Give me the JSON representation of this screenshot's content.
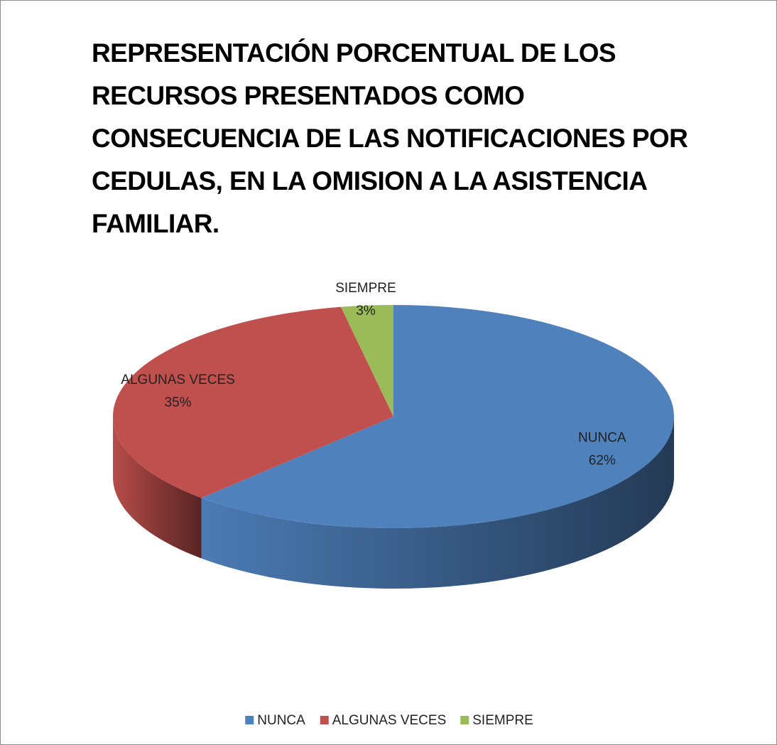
{
  "chart_data": {
    "type": "pie3d",
    "title": "REPRESENTACIÓN PORCENTUAL DE LOS RECURSOS PRESENTADOS  COMO CONSECUENCIA DE LAS NOTIFICACIONES POR CEDULAS, EN LA OMISION A LA ASISTENCIA FAMILIAR.",
    "categories": [
      "NUNCA",
      "ALGUNAS VECES",
      "SIEMPRE"
    ],
    "values": [
      62,
      35,
      3
    ],
    "value_labels": [
      "62%",
      "35%",
      "3%"
    ],
    "colors": [
      "#4f81bd",
      "#c0504d",
      "#9bbb59"
    ],
    "legend": "bottom"
  }
}
